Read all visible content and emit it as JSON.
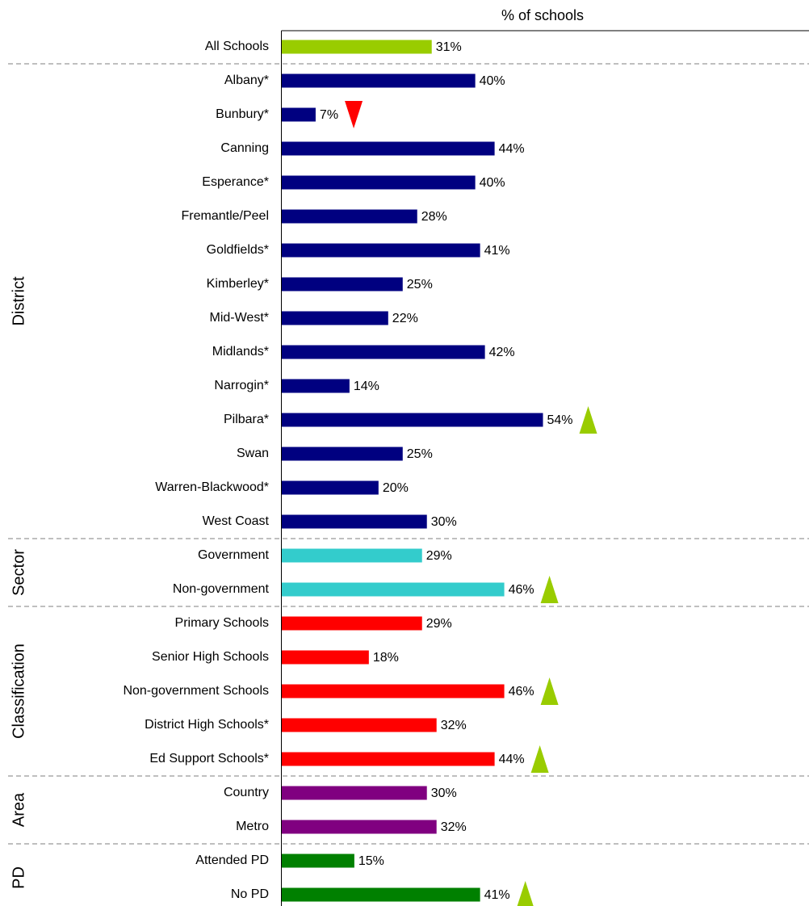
{
  "chart_data": {
    "type": "bar",
    "orientation": "horizontal",
    "title": "% of schools",
    "xlim": [
      0,
      109
    ],
    "groups": [
      {
        "color": "#99cc00",
        "categories": [
          "All Schools"
        ],
        "values": [
          31
        ],
        "value_labels": [
          "31%"
        ],
        "markers": [
          null
        ]
      },
      {
        "name": "District",
        "color": "#000080",
        "categories": [
          "Albany*",
          "Bunbury*",
          "Canning",
          "Esperance*",
          "Fremantle/Peel",
          "Goldfields*",
          "Kimberley*",
          "Mid-West*",
          "Midlands*",
          "Narrogin*",
          "Pilbara*",
          "Swan",
          "Warren-Blackwood*",
          "West Coast"
        ],
        "values": [
          40,
          7,
          44,
          40,
          28,
          41,
          25,
          22,
          42,
          14,
          54,
          25,
          20,
          30
        ],
        "value_labels": [
          "40%",
          "7%",
          "44%",
          "40%",
          "28%",
          "41%",
          "25%",
          "22%",
          "42%",
          "14%",
          "54%",
          "25%",
          "20%",
          "30%"
        ],
        "markers": [
          null,
          "down",
          null,
          null,
          null,
          null,
          null,
          null,
          null,
          null,
          "up",
          null,
          null,
          null
        ]
      },
      {
        "name": "Sector",
        "color": "#33cccc",
        "categories": [
          "Government",
          "Non-government"
        ],
        "values": [
          29,
          46
        ],
        "value_labels": [
          "29%",
          "46%"
        ],
        "markers": [
          null,
          "up"
        ]
      },
      {
        "name": "Classification",
        "color": "#ff0000",
        "categories": [
          "Primary Schools",
          "Senior High Schools",
          "Non-government Schools",
          "District High Schools*",
          "Ed Support Schools*"
        ],
        "values": [
          29,
          18,
          46,
          32,
          44
        ],
        "value_labels": [
          "29%",
          "18%",
          "46%",
          "32%",
          "44%"
        ],
        "markers": [
          null,
          null,
          "up",
          null,
          "up"
        ]
      },
      {
        "name": "Area",
        "color": "#800080",
        "categories": [
          "Country",
          "Metro"
        ],
        "values": [
          30,
          32
        ],
        "value_labels": [
          "30%",
          "32%"
        ],
        "markers": [
          null,
          null
        ]
      },
      {
        "name": "PD",
        "color": "#008000",
        "categories": [
          "Attended PD",
          "No PD"
        ],
        "values": [
          15,
          41
        ],
        "value_labels": [
          "15%",
          "41%"
        ],
        "markers": [
          null,
          "up"
        ]
      }
    ],
    "marker_colors": {
      "up": "#99cc00",
      "down": "#ff0000"
    }
  }
}
